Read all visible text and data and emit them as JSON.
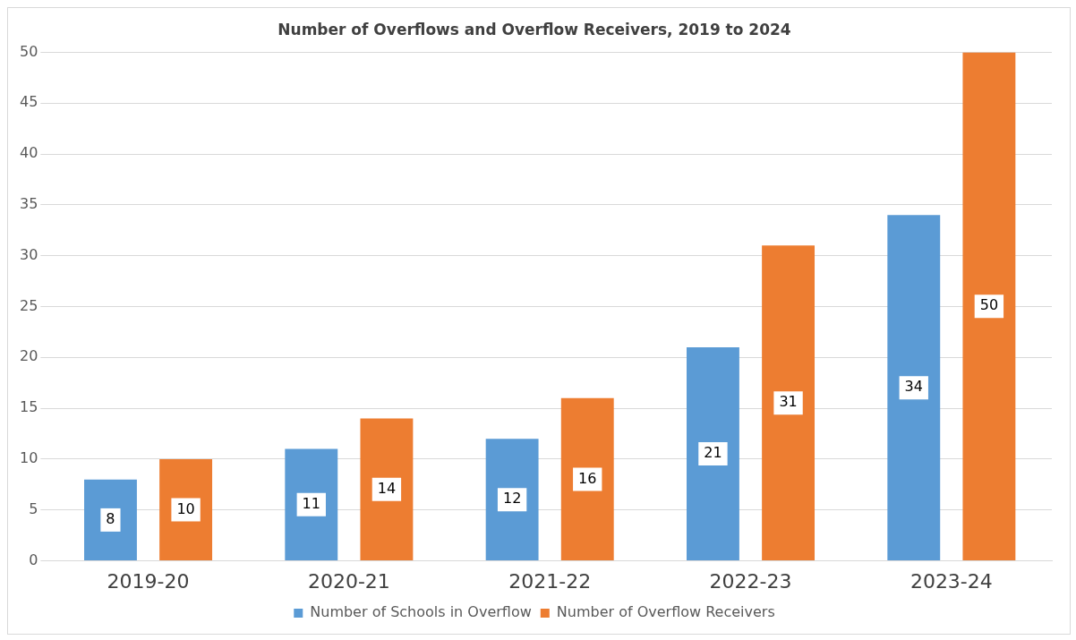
{
  "chart_data": {
    "type": "bar",
    "title": "Number of Overflows and Overflow Receivers, 2019 to 2024",
    "categories": [
      "2019-20",
      "2020-21",
      "2021-22",
      "2022-23",
      "2023-24"
    ],
    "series": [
      {
        "name": "Number of Schools in Overflow",
        "color": "#5b9bd5",
        "values": [
          8,
          11,
          12,
          21,
          34
        ]
      },
      {
        "name": "Number of Overflow Receivers",
        "color": "#ed7d31",
        "values": [
          10,
          14,
          16,
          31,
          50
        ]
      }
    ],
    "ylim": [
      0,
      50
    ],
    "yticks": [
      0,
      5,
      10,
      15,
      20,
      25,
      30,
      35,
      40,
      45,
      50
    ],
    "grid": "y",
    "legend": "bottom",
    "data_labels": true
  }
}
